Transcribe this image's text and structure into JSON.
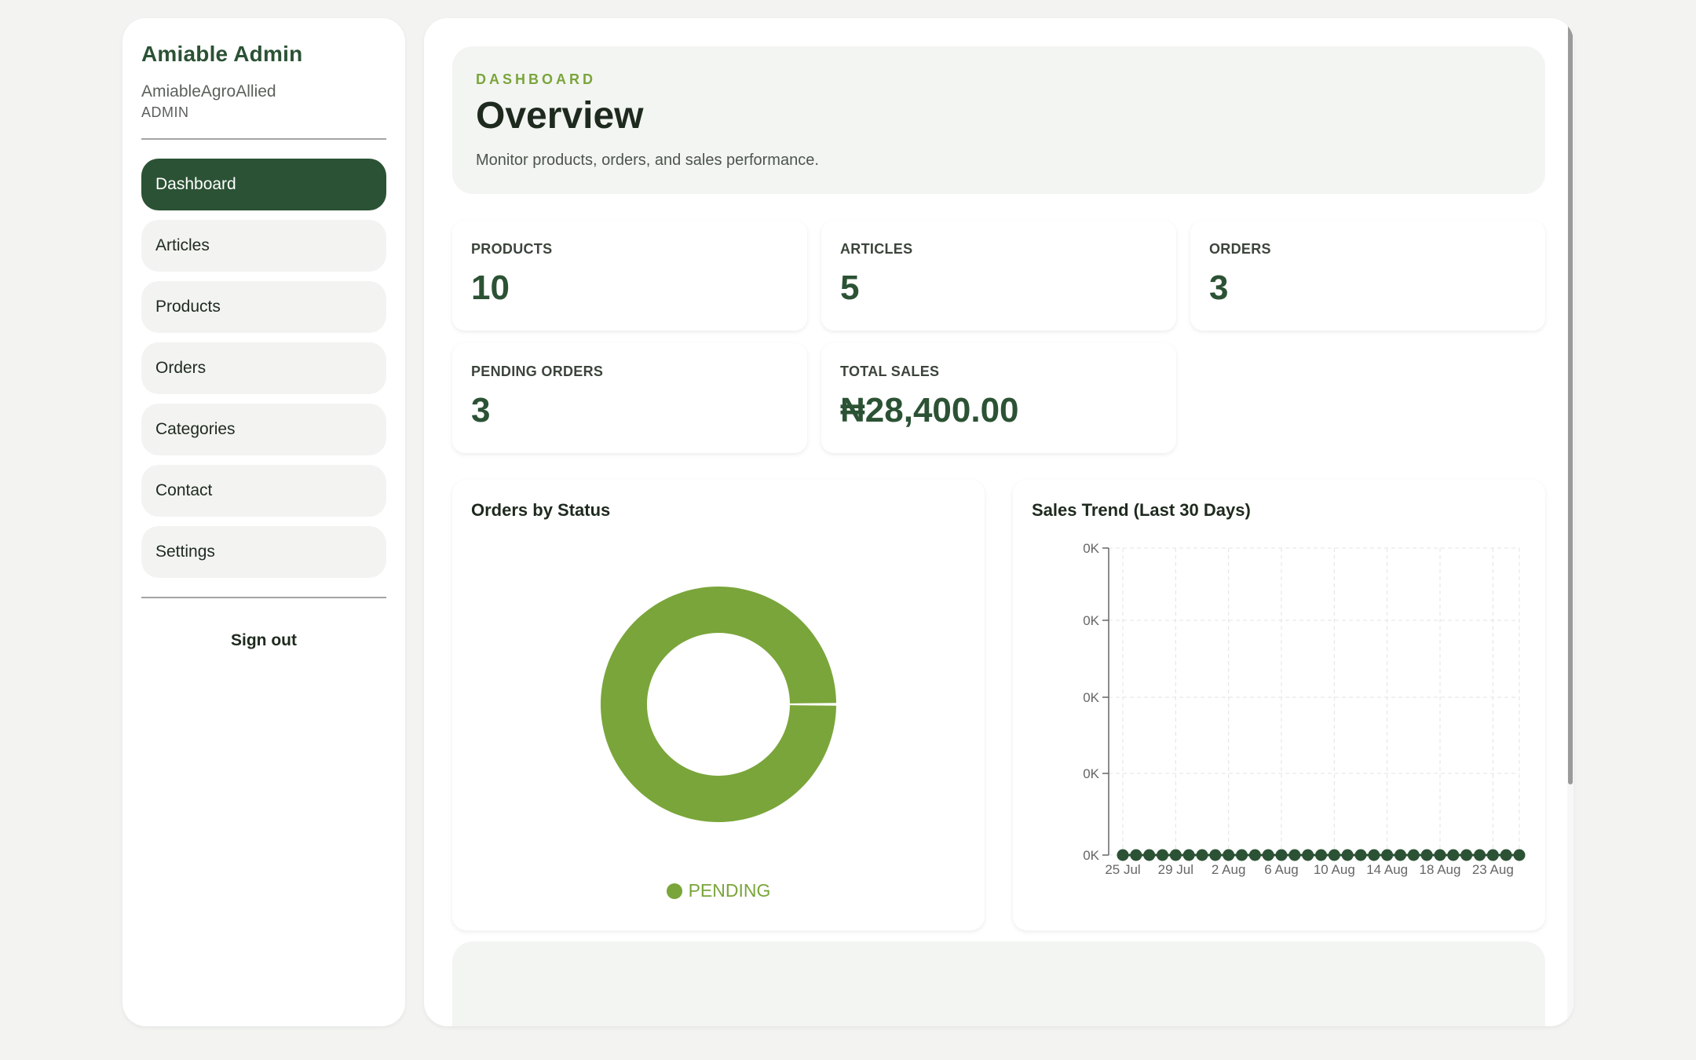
{
  "sidebar": {
    "title": "Amiable Admin",
    "org": "AmiableAgroAllied",
    "role": "ADMIN",
    "items": [
      {
        "label": "Dashboard"
      },
      {
        "label": "Articles"
      },
      {
        "label": "Products"
      },
      {
        "label": "Orders"
      },
      {
        "label": "Categories"
      },
      {
        "label": "Contact"
      },
      {
        "label": "Settings"
      }
    ],
    "active_item": "Dashboard",
    "signout_label": "Sign out"
  },
  "hero": {
    "eyebrow": "DASHBOARD",
    "title": "Overview",
    "description": "Monitor products, orders, and sales performance."
  },
  "stats": [
    {
      "label": "PRODUCTS",
      "value": "10"
    },
    {
      "label": "ARTICLES",
      "value": "5"
    },
    {
      "label": "ORDERS",
      "value": "3"
    },
    {
      "label": "PENDING ORDERS",
      "value": "3"
    },
    {
      "label": "TOTAL SALES",
      "value": "₦28,400.00"
    }
  ],
  "colors": {
    "brand_dark": "#2b5234",
    "accent_green": "#7aa53a",
    "panel_bg": "#f3f5f2"
  },
  "chart_data": [
    {
      "type": "pie",
      "title": "Orders by Status",
      "donut": true,
      "categories": [
        "PENDING"
      ],
      "values": [
        3
      ],
      "colors": [
        "#7aa53a"
      ],
      "legend": "bottom"
    },
    {
      "type": "line",
      "title": "Sales Trend (Last 30 Days)",
      "x_tick_labels": [
        "25 Jul",
        "29 Jul",
        "2 Aug",
        "6 Aug",
        "10 Aug",
        "14 Aug",
        "18 Aug",
        "23 Aug"
      ],
      "x": [
        "25 Jul",
        "26 Jul",
        "27 Jul",
        "28 Jul",
        "29 Jul",
        "30 Jul",
        "31 Jul",
        "1 Aug",
        "2 Aug",
        "3 Aug",
        "4 Aug",
        "5 Aug",
        "6 Aug",
        "7 Aug",
        "8 Aug",
        "9 Aug",
        "10 Aug",
        "11 Aug",
        "12 Aug",
        "13 Aug",
        "14 Aug",
        "15 Aug",
        "16 Aug",
        "17 Aug",
        "18 Aug",
        "19 Aug",
        "20 Aug",
        "21 Aug",
        "22 Aug",
        "23 Aug",
        "24 Aug"
      ],
      "values": [
        0,
        0,
        0,
        0,
        0,
        0,
        0,
        0,
        0,
        0,
        0,
        0,
        0,
        0,
        0,
        0,
        0,
        0,
        0,
        0,
        0,
        0,
        0,
        0,
        0,
        0,
        0,
        0,
        0,
        0,
        0
      ],
      "y_tick_labels": [
        "0K",
        "0K",
        "0K",
        "0K",
        "0K"
      ],
      "grid": true,
      "line_color": "#2b5234"
    }
  ]
}
